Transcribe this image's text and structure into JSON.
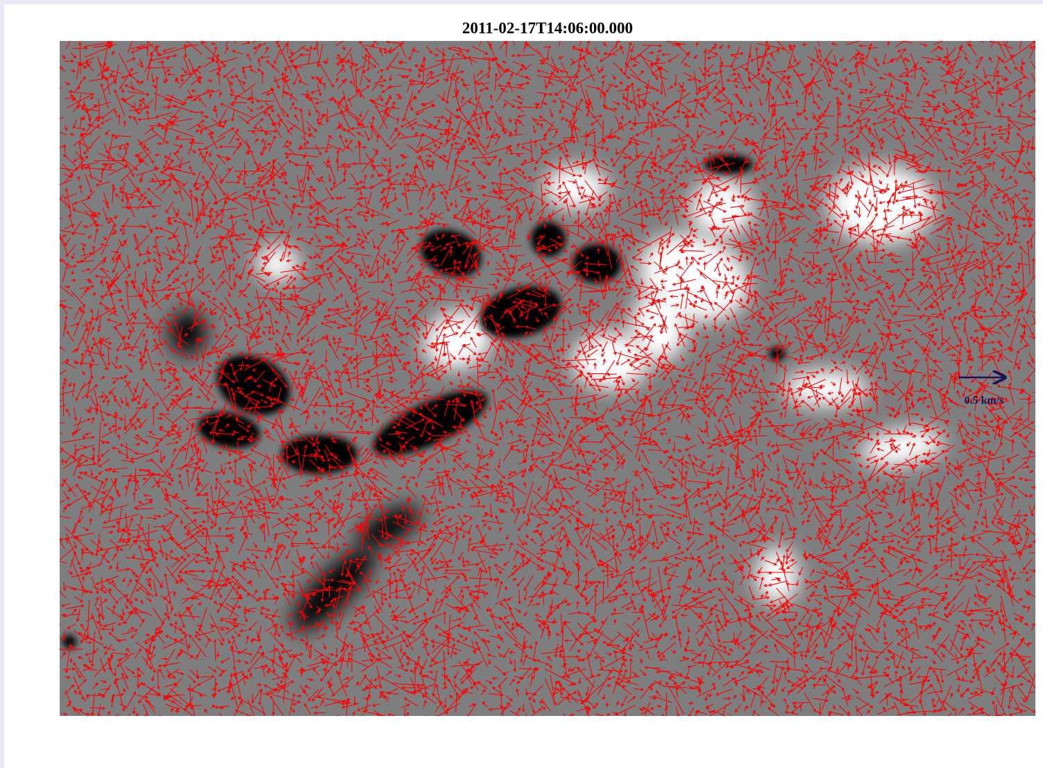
{
  "figure": {
    "title": "2011-02-17T14:06:00.000",
    "scale_label": "0.5 km/s"
  }
}
